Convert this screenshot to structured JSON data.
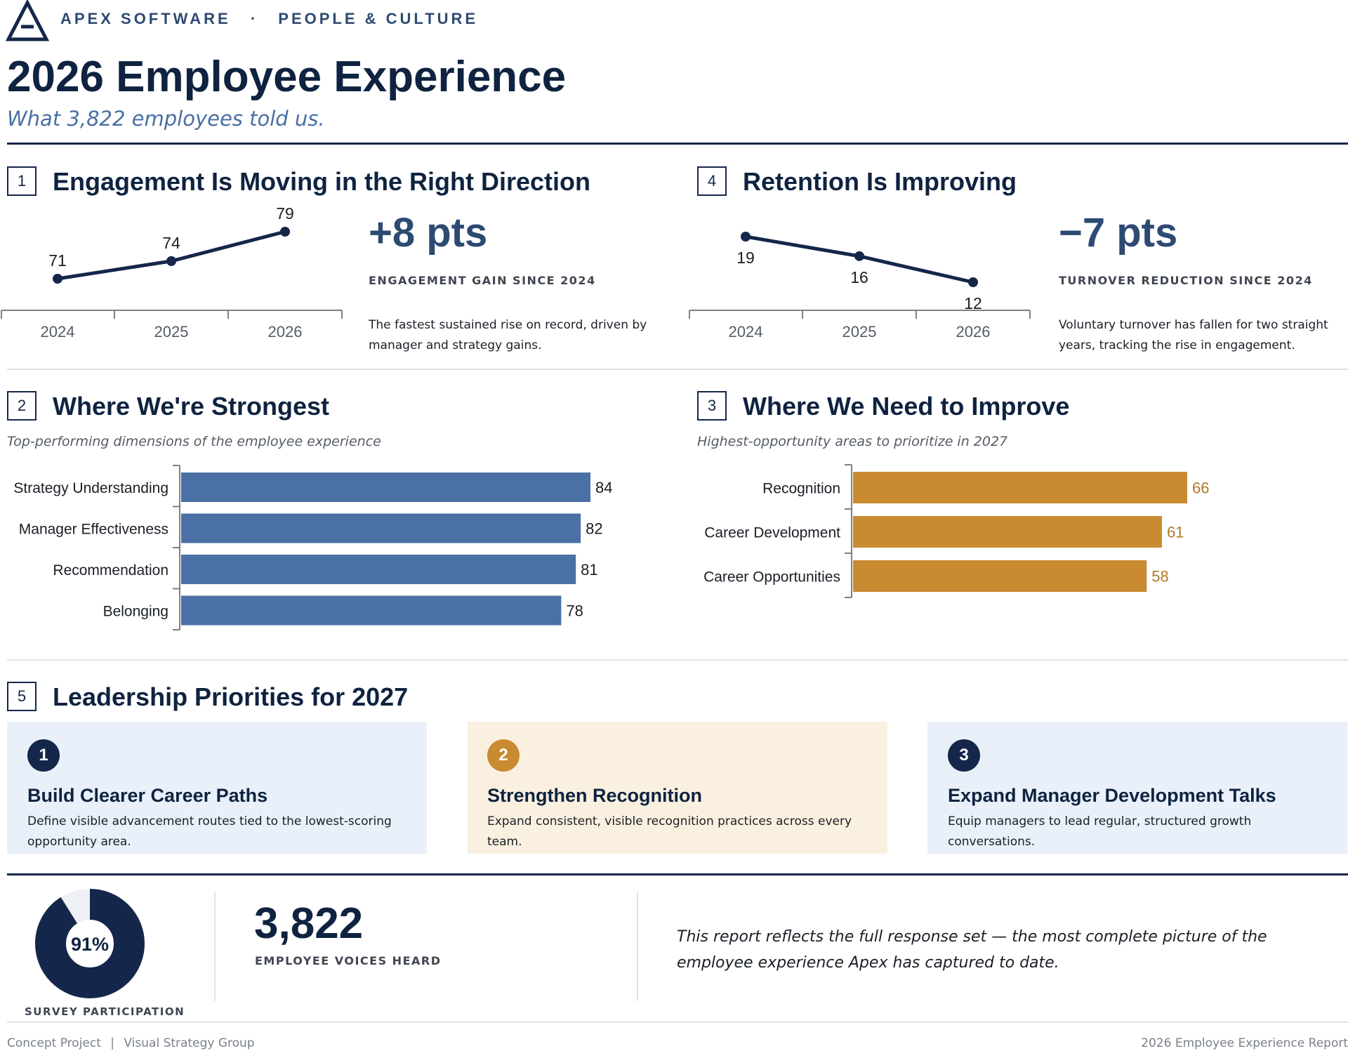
{
  "header": {
    "brand": "APEX SOFTWARE",
    "separator": "·",
    "department": "PEOPLE & CULTURE",
    "title": "2026 Employee Experience",
    "subtitle": "What 3,822 employees told us."
  },
  "sections": {
    "engagement": {
      "number": "1",
      "title": "Engagement Is Moving in the Right Direction",
      "kpi": "+8 pts",
      "kpi_label": "ENGAGEMENT GAIN SINCE 2024",
      "description": "The fastest sustained rise on record, driven by manager and strategy gains."
    },
    "retention": {
      "number": "4",
      "title": "Retention Is Improving",
      "kpi": "−7 pts",
      "kpi_label": "TURNOVER REDUCTION SINCE 2024",
      "description": "Voluntary turnover has fallen for two straight years, tracking the rise in engagement."
    },
    "strongest": {
      "number": "2",
      "title": "Where We're Strongest",
      "subtitle": "Top-performing dimensions of the employee experience"
    },
    "improve": {
      "number": "3",
      "title": "Where We Need to Improve",
      "subtitle": "Highest-opportunity areas to prioritize in 2027"
    },
    "priorities": {
      "number": "5",
      "title": "Leadership Priorities for 2027",
      "cards": [
        {
          "num": "1",
          "title": "Build Clearer Career Paths",
          "desc": "Define visible advancement routes tied to the lowest-scoring opportunity area."
        },
        {
          "num": "2",
          "title": "Strengthen Recognition",
          "desc": "Expand consistent, visible recognition practices across every team."
        },
        {
          "num": "3",
          "title": "Expand Manager Development Talks",
          "desc": "Equip managers to lead regular, structured growth conversations."
        }
      ]
    }
  },
  "summary": {
    "participation_value": "91%",
    "participation_fraction": 0.91,
    "participation_label": "SURVEY PARTICIPATION",
    "voices": "3,822",
    "voices_label": "EMPLOYEE VOICES HEARD",
    "statement": "This report reflects the full response set — the most complete picture of the employee experience Apex has captured to date."
  },
  "footer": {
    "left_a": "Concept Project",
    "left_sep": "|",
    "left_b": "Visual Strategy Group",
    "right": "2026 Employee Experience Report"
  },
  "colors": {
    "navy": "#14274a",
    "blue_bar": "#4a70a6",
    "gold_bar": "#c98a32",
    "card_blue": "#e9f0f9",
    "card_gold": "#faf0e0"
  },
  "chart_data": [
    {
      "type": "line",
      "x": [
        "2024",
        "2025",
        "2026"
      ],
      "series": [
        {
          "values": [
            71,
            74,
            79
          ]
        }
      ]
    },
    {
      "type": "line",
      "x": [
        "2024",
        "2025",
        "2026"
      ],
      "series": [
        {
          "values": [
            19,
            16,
            12
          ]
        }
      ]
    },
    {
      "type": "bar",
      "orientation": "horizontal",
      "categories": [
        "Strategy Understanding",
        "Manager Effectiveness",
        "Recommendation",
        "Belonging"
      ],
      "values": [
        84,
        82,
        81,
        78
      ]
    },
    {
      "type": "bar",
      "orientation": "horizontal",
      "categories": [
        "Recognition",
        "Career Development",
        "Career Opportunities"
      ],
      "values": [
        66,
        61,
        58
      ]
    },
    {
      "type": "pie",
      "values": [
        91,
        9
      ]
    }
  ]
}
